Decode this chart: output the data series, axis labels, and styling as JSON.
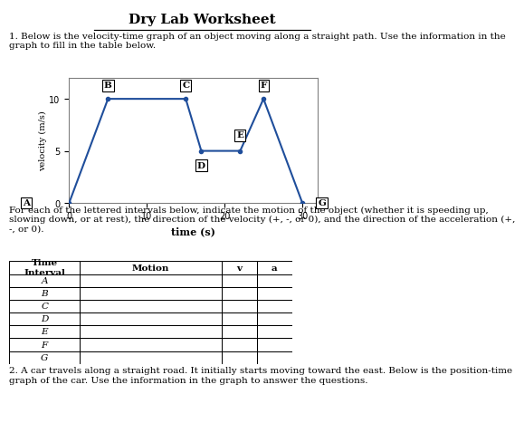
{
  "title": "Dry Lab Worksheet",
  "question1_text": "1. Below is the velocity-time graph of an object moving along a straight path. Use the information in the\ngraph to fill in the table below.",
  "graph_xlabel": "time (s)",
  "graph_ylabel": "velocity (m/s)",
  "graph_xlim": [
    0,
    32
  ],
  "graph_ylim": [
    0,
    12
  ],
  "graph_xticks": [
    0,
    10,
    20,
    30
  ],
  "graph_yticks": [
    0,
    5,
    10
  ],
  "line_x": [
    0,
    5,
    15,
    17,
    22,
    25,
    30
  ],
  "line_y": [
    0,
    10,
    10,
    5,
    5,
    10,
    0
  ],
  "point_labels": [
    "A",
    "B",
    "C",
    "D",
    "E",
    "F",
    "G"
  ],
  "line_color": "#1f4e9b",
  "table_header": [
    "Time\nInterval",
    "Motion",
    "v",
    "a"
  ],
  "table_rows": [
    "A",
    "B",
    "C",
    "D",
    "E",
    "F",
    "G"
  ],
  "para_text": "For each of the lettered intervals below, indicate the motion of the object (whether it is speeding up,\nslowing down, or at rest), the direction of the velocity (+, -, or 0), and the direction of the acceleration (+,\n-, or 0).",
  "question2_text": "2. A car travels along a straight road. It initially starts moving toward the east. Below is the position-time\ngraph of the car. Use the information in the graph to answer the questions.",
  "bg_color": "#ffffff",
  "text_color": "#000000"
}
